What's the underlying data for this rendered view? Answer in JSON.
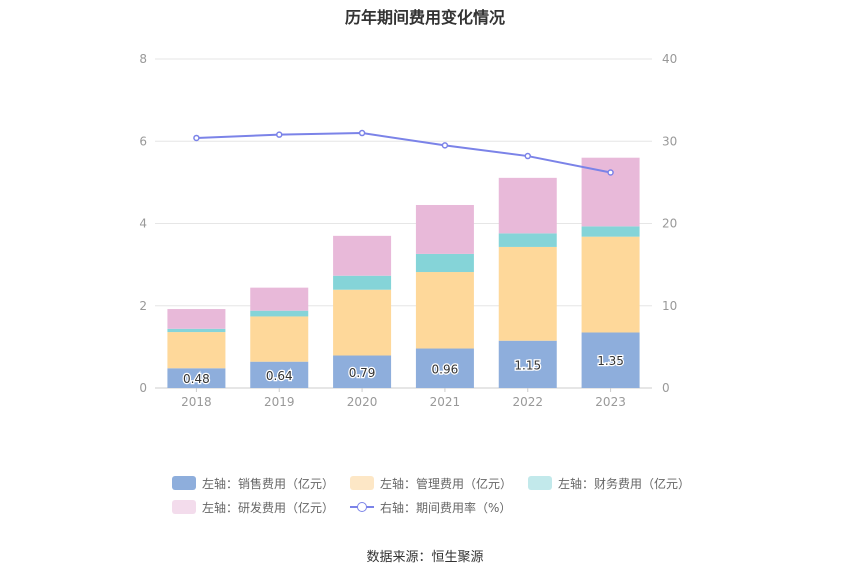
{
  "chart_data": {
    "type": "bar",
    "title": "历年期间费用变化情况",
    "categories": [
      "2018",
      "2019",
      "2020",
      "2021",
      "2022",
      "2023"
    ],
    "series": [
      {
        "name": "左轴：销售费用（亿元）",
        "values": [
          0.48,
          0.64,
          0.79,
          0.96,
          1.15,
          1.35
        ],
        "color": "#8eaedc",
        "axis": "left"
      },
      {
        "name": "左轴：管理费用（亿元）",
        "values": [
          0.88,
          1.1,
          1.6,
          1.86,
          2.28,
          2.33
        ],
        "color": "#fed89a",
        "axis": "left"
      },
      {
        "name": "左轴：财务费用（亿元）",
        "values": [
          0.08,
          0.14,
          0.34,
          0.44,
          0.33,
          0.25
        ],
        "color": "#85d4d8",
        "axis": "left"
      },
      {
        "name": "左轴：研发费用（亿元）",
        "values": [
          0.48,
          0.56,
          0.97,
          1.19,
          1.35,
          1.67
        ],
        "color": "#e8b9d9",
        "axis": "left"
      },
      {
        "name": "右轴：期间费用率（%）",
        "type": "line",
        "values": [
          30.4,
          30.8,
          31.0,
          29.5,
          28.2,
          26.2
        ],
        "color": "#7b83e8",
        "axis": "right"
      }
    ],
    "data_labels": [
      "0.48",
      "0.64",
      "0.79",
      "0.96",
      "1.15",
      "1.35"
    ],
    "left_axis": {
      "min": 0,
      "max": 8,
      "ticks": [
        "0",
        "2",
        "4",
        "6",
        "8"
      ]
    },
    "right_axis": {
      "min": 0,
      "max": 40,
      "ticks": [
        "0",
        "10",
        "20",
        "30",
        "40"
      ]
    },
    "grid": true,
    "legend_position": "bottom"
  },
  "legend_swatch_colors": [
    "#8eaedc",
    "#fde7c6",
    "#c2e9eb",
    "#f3dcec"
  ],
  "source_text": "数据来源：恒生聚源"
}
